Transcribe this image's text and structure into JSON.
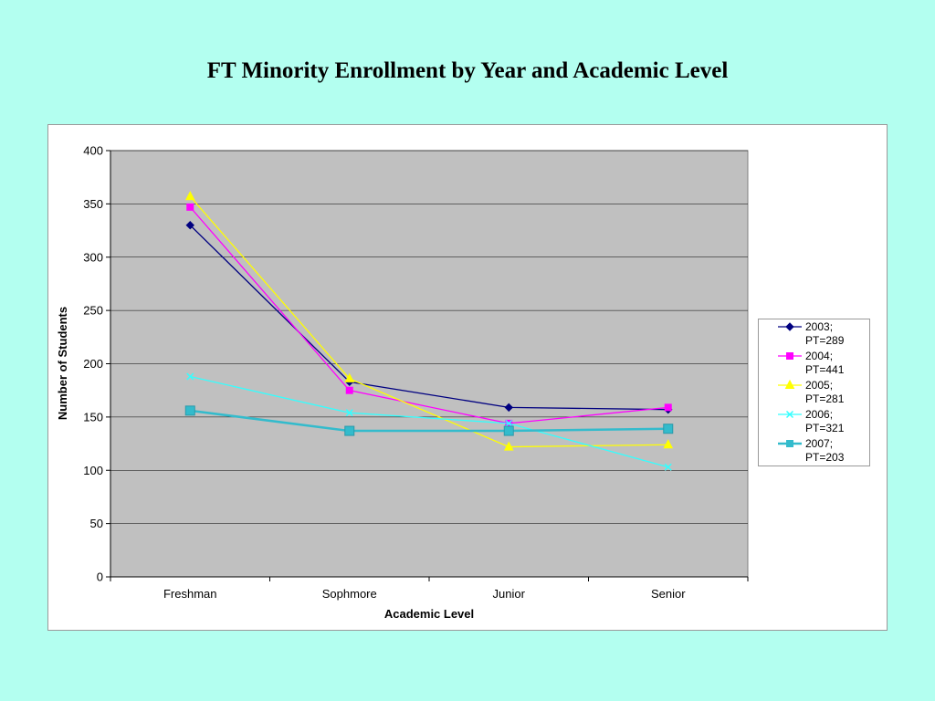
{
  "slide": {
    "title": "FT Minority Enrollment by Year and Academic Level"
  },
  "chart_data": {
    "type": "line",
    "title": "FT Minority Enrollment by Year and Academic Level",
    "xlabel": "Academic Level",
    "ylabel": "Number of Students",
    "categories": [
      "Freshman",
      "Sophmore",
      "Junior",
      "Senior"
    ],
    "ylim": [
      0,
      400
    ],
    "yticks": [
      0,
      50,
      100,
      150,
      200,
      250,
      300,
      350,
      400
    ],
    "grid": true,
    "legend_position": "right",
    "series": [
      {
        "name": "2003; PT=289",
        "name_lines": [
          "2003;",
          "PT=289"
        ],
        "values": [
          330,
          183,
          159,
          157
        ],
        "color": "#000080",
        "marker": "diamond"
      },
      {
        "name": "2004; PT=441",
        "name_lines": [
          "2004;",
          "PT=441"
        ],
        "values": [
          347,
          175,
          144,
          159
        ],
        "color": "#ff00ff",
        "marker": "square"
      },
      {
        "name": "2005; PT=281",
        "name_lines": [
          "2005;",
          "PT=281"
        ],
        "values": [
          357,
          186,
          122,
          124
        ],
        "color": "#ffff00",
        "marker": "triangle"
      },
      {
        "name": "2006; PT=321",
        "name_lines": [
          "2006;",
          "PT=321"
        ],
        "values": [
          188,
          154,
          144,
          103
        ],
        "color": "#33ffff",
        "marker": "x"
      },
      {
        "name": "2007; PT=203",
        "name_lines": [
          "2007;",
          "PT=203"
        ],
        "values": [
          156,
          137,
          137,
          139
        ],
        "color": "#33bbcc",
        "marker": "square-large"
      }
    ],
    "colors": {
      "plot_background": "#c0c0c0",
      "slide_background": "#b3fff0",
      "gridline": "#000000"
    }
  }
}
